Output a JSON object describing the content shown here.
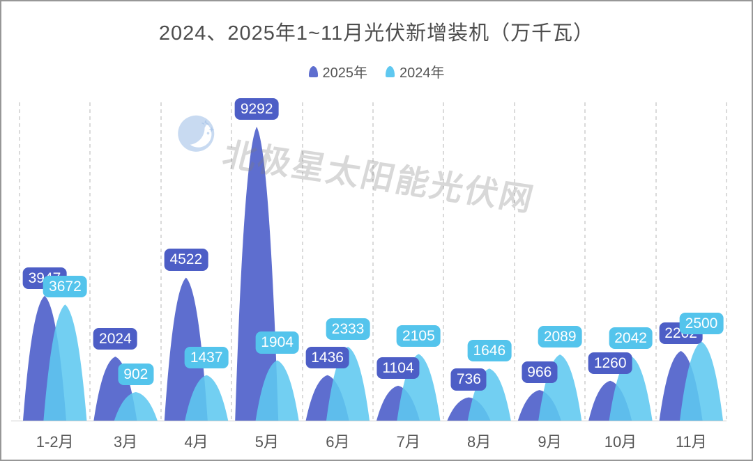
{
  "title": "2024、2025年1~11月光伏新增装机（万千瓦）",
  "legend": [
    {
      "label": "2025年",
      "color": "#5e6ecf"
    },
    {
      "label": "2024年",
      "color": "#5fc8f0"
    }
  ],
  "watermark": {
    "text": "北极星太阳能光伏网",
    "logo": "moon-stars-logo",
    "color": "#c9daf0"
  },
  "colors": {
    "series_2025_bar": "#5e6ecf",
    "series_2025_label_bg": "#4d5ec6",
    "series_2024_bar": "#5fc8f0",
    "series_2024_label_bg": "#54c4ec",
    "grid_dash": "#dadada",
    "axis_line": "#cccccc",
    "axis_text": "#555555",
    "title_text": "#4d4d4d"
  },
  "chart_data": {
    "type": "bar",
    "variant": "pictorial-peak",
    "title": "2024、2025年1~11月光伏新增装机（万千瓦）",
    "xlabel": "",
    "ylabel": "万千瓦",
    "ylim": [
      0,
      9292
    ],
    "grid": "vertical-dashed",
    "legend_position": "top-center",
    "categories": [
      "1-2月",
      "3月",
      "4月",
      "5月",
      "6月",
      "7月",
      "8月",
      "9月",
      "10月",
      "11月"
    ],
    "series": [
      {
        "name": "2025年",
        "color": "#5e6ecf",
        "label_bg": "#4d5ec6",
        "values": [
          3947,
          2024,
          4522,
          9292,
          1436,
          1104,
          736,
          966,
          1260,
          2202
        ]
      },
      {
        "name": "2024年",
        "color": "#5fc8f0",
        "label_bg": "#54c4ec",
        "values": [
          3672,
          902,
          1437,
          1904,
          2333,
          2105,
          1646,
          2089,
          2042,
          2500
        ]
      }
    ]
  }
}
